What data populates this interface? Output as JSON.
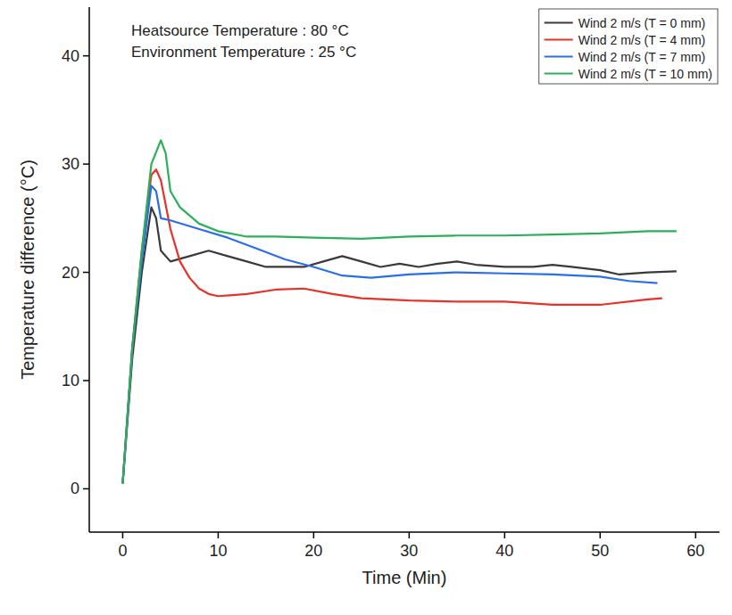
{
  "chart_data": {
    "type": "line",
    "x_label": "Time (Min)",
    "y_label": "Temperature difference (°C)",
    "annotations": [
      "Heatsource Temperature : 80 °C",
      "Environment Temperature : 25 °C"
    ],
    "xlim": [
      -3.5,
      62.5
    ],
    "ylim": [
      -4,
      44.5
    ],
    "xticks": [
      0,
      10,
      20,
      30,
      40,
      50,
      60
    ],
    "yticks": [
      0,
      10,
      20,
      30,
      40
    ],
    "grid": false,
    "legend": "upper right",
    "series": [
      {
        "name": "Wind 2 m/s (T = 0 mm)",
        "color": "#3a3a3a",
        "line_style": "solid",
        "marker": "none",
        "x": [
          0,
          1,
          2,
          3,
          3.5,
          4,
          5,
          7,
          9,
          11,
          13,
          15,
          17,
          19,
          21,
          23,
          25,
          27,
          29,
          31,
          33,
          35,
          37,
          40,
          43,
          45,
          47,
          50,
          52,
          55,
          58
        ],
        "values": [
          0.5,
          12,
          20,
          26,
          25,
          22,
          21,
          21.5,
          22,
          21.5,
          21,
          20.5,
          20.5,
          20.5,
          21,
          21.5,
          21,
          20.5,
          20.8,
          20.5,
          20.8,
          21,
          20.7,
          20.5,
          20.5,
          20.7,
          20.5,
          20.2,
          19.8,
          20,
          20.1
        ]
      },
      {
        "name": "Wind 2 m/s (T = 4 mm)",
        "color": "#e8312a",
        "line_style": "solid",
        "marker": "none",
        "x": [
          0,
          1,
          2,
          3,
          3.5,
          4,
          5,
          6,
          7,
          8,
          9,
          10,
          13,
          16,
          19,
          22,
          25,
          30,
          35,
          40,
          45,
          50,
          55,
          56.5
        ],
        "values": [
          0.5,
          13,
          22,
          29,
          29.5,
          28.5,
          24,
          21,
          19.5,
          18.5,
          18,
          17.8,
          18,
          18.4,
          18.5,
          18,
          17.6,
          17.4,
          17.3,
          17.3,
          17,
          17,
          17.5,
          17.6
        ]
      },
      {
        "name": "Wind 2 m/s (T = 7 mm)",
        "color": "#2a6ee8",
        "line_style": "solid",
        "marker": "none",
        "x": [
          0,
          1,
          2,
          3,
          3.5,
          4,
          5,
          8,
          11,
          14,
          17,
          20,
          23,
          26,
          30,
          35,
          40,
          45,
          50,
          53,
          56
        ],
        "values": [
          0.5,
          13,
          21,
          28,
          27.5,
          25,
          24.8,
          24,
          23.2,
          22.2,
          21.2,
          20.5,
          19.7,
          19.5,
          19.8,
          20,
          19.9,
          19.8,
          19.6,
          19.2,
          19
        ]
      },
      {
        "name": "Wind 2 m/s (T = 10 mm)",
        "color": "#2bb05a",
        "line_style": "solid",
        "marker": "none",
        "x": [
          0,
          1,
          2,
          3,
          4,
          4.5,
          5,
          6,
          8,
          10,
          13,
          16,
          20,
          25,
          30,
          35,
          40,
          45,
          50,
          55,
          58
        ],
        "values": [
          0.5,
          13,
          22,
          30,
          32.2,
          31,
          27.5,
          26,
          24.5,
          23.8,
          23.3,
          23.3,
          23.2,
          23.1,
          23.3,
          23.4,
          23.4,
          23.5,
          23.6,
          23.8,
          23.8
        ]
      }
    ]
  }
}
